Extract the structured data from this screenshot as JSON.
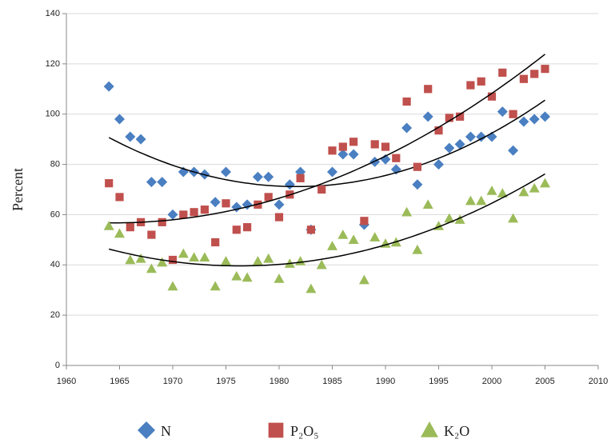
{
  "chart_data": {
    "type": "scatter",
    "y_label": "Percent",
    "x": [
      1964,
      1965,
      1966,
      1967,
      1968,
      1969,
      1970,
      1971,
      1972,
      1973,
      1974,
      1975,
      1976,
      1977,
      1978,
      1979,
      1980,
      1981,
      1982,
      1983,
      1984,
      1985,
      1986,
      1987,
      1988,
      1989,
      1990,
      1991,
      1992,
      1993,
      1994,
      1995,
      1996,
      1997,
      1998,
      1999,
      2000,
      2001,
      2002,
      2003,
      2004,
      2005
    ],
    "series": [
      {
        "name": "N",
        "color": "#4a7fc1",
        "marker": "diamond",
        "values": [
          111,
          98,
          91,
          90,
          73,
          73,
          60,
          77,
          77,
          76,
          65,
          77,
          63,
          64,
          75,
          75,
          64,
          72,
          77,
          54,
          null,
          77,
          84,
          84,
          56,
          81,
          82,
          78,
          94.5,
          72,
          99,
          80,
          86.5,
          88,
          91,
          91,
          91,
          101,
          85.5,
          97,
          98,
          99
        ]
      },
      {
        "name": "P₂O₅",
        "color": "#c0504d",
        "marker": "square",
        "values": [
          72.5,
          67,
          55,
          57,
          52,
          57,
          42,
          60,
          61,
          62,
          49,
          64.5,
          54,
          55,
          64,
          67,
          59,
          68,
          74.5,
          54,
          70,
          85.5,
          87,
          89,
          57.5,
          88,
          87,
          82.5,
          105,
          79,
          110,
          93.5,
          98.5,
          99,
          111.5,
          113,
          107,
          116.5,
          100,
          114,
          116,
          118
        ]
      },
      {
        "name": "K₂O",
        "color": "#9bbb59",
        "marker": "triangle",
        "values": [
          55.5,
          52.5,
          42,
          42.5,
          38.5,
          41,
          31.5,
          44.5,
          43,
          43,
          31.5,
          41.5,
          35.5,
          35,
          41.5,
          42.5,
          34.5,
          40.5,
          41.5,
          30.5,
          40,
          47.5,
          52,
          50,
          34,
          51,
          48.5,
          49,
          61,
          46,
          64,
          55.5,
          58.5,
          58,
          65.5,
          65.5,
          69.5,
          68.5,
          58.5,
          69,
          70.5,
          72.5
        ]
      }
    ],
    "xlim": [
      1960,
      2010
    ],
    "xticks": [
      1960,
      1965,
      1970,
      1975,
      1980,
      1985,
      1990,
      1995,
      2000,
      2005,
      2010
    ],
    "ylim": [
      0,
      140
    ],
    "yticks": [
      0,
      20,
      40,
      60,
      80,
      100,
      120,
      140
    ],
    "grid": true,
    "legend": "bottom",
    "trendline": {
      "type": "polynomial",
      "order": 2,
      "color": "#000000"
    }
  }
}
